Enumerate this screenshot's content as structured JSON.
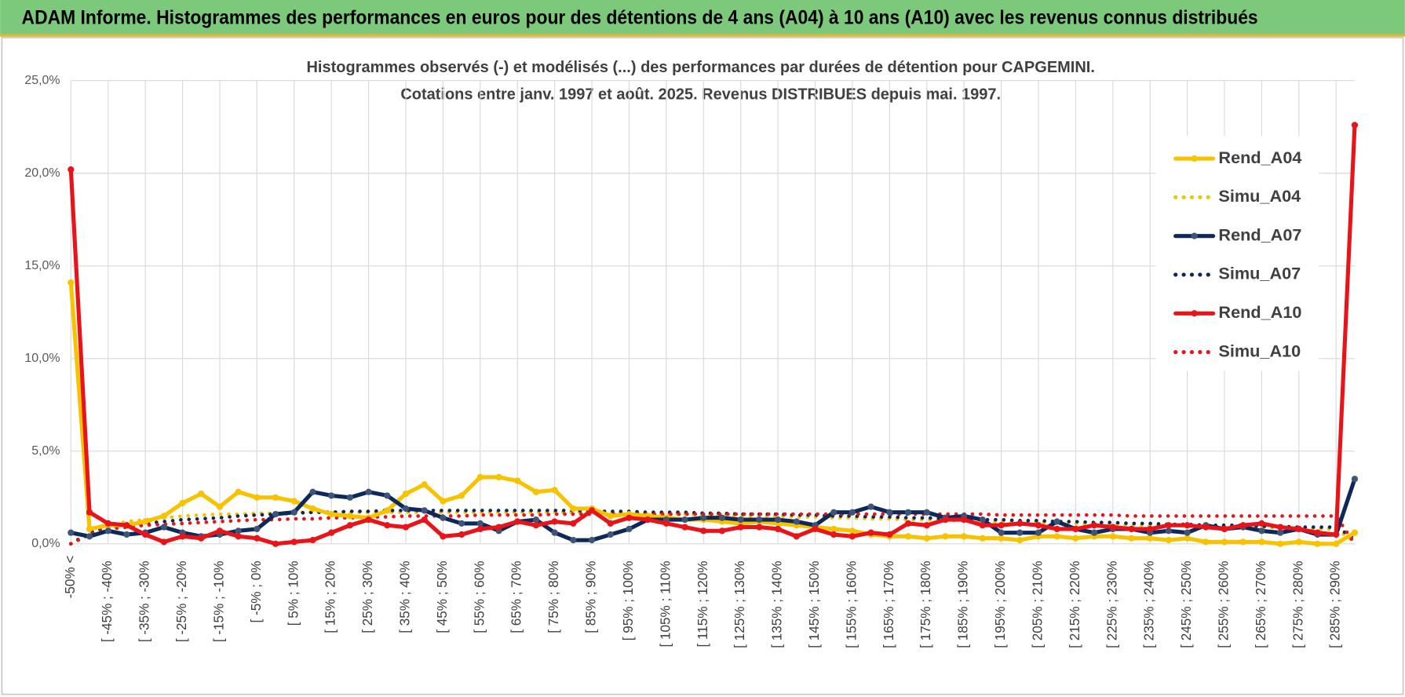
{
  "chart_data": {
    "type": "line",
    "title": "ADAM Informe. Histogrammes des performances en euros pour des détentions de 4 ans (A04) à 10 ans (A10) avec les revenus connus distribués",
    "subtitle": [
      "Histogrammes observés (-) et modélisés (...) des performances par durées de détention pour CAPGEMINI.",
      "Cotations entre janv. 1997 et août. 2025. Revenus DISTRIBUES depuis mai. 1997."
    ],
    "categories": [
      "-50% <",
      null,
      "[ -45% ; -40%",
      null,
      "[ -35% ; -30%",
      null,
      "[ -25% ; -20%",
      null,
      "[ -15% ; -10%",
      null,
      "[ -5% ; 0%",
      null,
      "[ 5% ; 10%",
      null,
      "[ 15% ; 20%",
      null,
      "[ 25% ; 30%",
      null,
      "[ 35% ; 40%",
      null,
      "[ 45% ; 50%",
      null,
      "[ 55% ; 60%",
      null,
      "[ 65% ; 70%",
      null,
      "[ 75% ; 80%",
      null,
      "[ 85% ; 90%",
      null,
      "[ 95% ; 100%",
      null,
      "[ 105% ; 110%",
      null,
      "[ 115% ; 120%",
      null,
      "[ 125% ; 130%",
      null,
      "[ 135% ; 140%",
      null,
      "[ 145% ; 150%",
      null,
      "[ 155% ; 160%",
      null,
      "[ 165% ; 170%",
      null,
      "[ 175% ; 180%",
      null,
      "[ 185% ; 190%",
      null,
      "[ 195% ; 200%",
      null,
      "[ 205% ; 210%",
      null,
      "[ 215% ; 220%",
      null,
      "[ 225% ; 230%",
      null,
      "[ 235% ; 240%",
      null,
      "[ 245% ; 250%",
      null,
      "[ 255% ; 260%",
      null,
      "[ 265% ; 270%",
      null,
      "[ 275% ; 280%",
      null,
      "[ 285% ; 290%",
      null
    ],
    "series": [
      {
        "name": "Rend_A04",
        "color": "#f7c200",
        "style": "solid",
        "values": [
          14.1,
          0.8,
          1.0,
          1.0,
          1.2,
          1.5,
          2.2,
          2.7,
          2.0,
          2.8,
          2.5,
          2.5,
          2.3,
          1.9,
          1.6,
          1.5,
          1.4,
          1.8,
          2.7,
          3.2,
          2.3,
          2.6,
          3.6,
          3.6,
          3.4,
          2.8,
          2.9,
          1.9,
          1.9,
          1.5,
          1.6,
          1.5,
          1.4,
          1.3,
          1.3,
          1.2,
          1.1,
          1.2,
          1.1,
          1.0,
          0.9,
          0.8,
          0.7,
          0.5,
          0.4,
          0.4,
          0.3,
          0.4,
          0.4,
          0.3,
          0.3,
          0.2,
          0.4,
          0.4,
          0.3,
          0.4,
          0.4,
          0.3,
          0.3,
          0.2,
          0.3,
          0.1,
          0.1,
          0.1,
          0.1,
          0.0,
          0.1,
          0.0,
          0.0,
          0.6
        ]
      },
      {
        "name": "Simu_A04",
        "color": "#f7c200",
        "style": "dotted",
        "values": [
          0.0,
          0.6,
          1.0,
          1.2,
          1.3,
          1.4,
          1.5,
          1.55,
          1.6,
          1.6,
          1.65,
          1.65,
          1.7,
          1.7,
          1.7,
          1.7,
          1.7,
          1.7,
          1.7,
          1.7,
          1.7,
          1.7,
          1.7,
          1.7,
          1.7,
          1.7,
          1.7,
          1.7,
          1.7,
          1.65,
          1.65,
          1.6,
          1.6,
          1.6,
          1.55,
          1.55,
          1.5,
          1.5,
          1.5,
          1.45,
          1.45,
          1.4,
          1.4,
          1.35,
          1.35,
          1.3,
          1.3,
          1.25,
          1.25,
          1.2,
          1.2,
          1.15,
          1.15,
          1.1,
          1.1,
          1.05,
          1.05,
          1.0,
          1.0,
          1.0,
          0.95,
          0.95,
          0.9,
          0.9,
          0.9,
          0.85,
          0.85,
          0.8,
          0.8,
          0.1
        ]
      },
      {
        "name": "Rend_A07",
        "color": "#0e2859",
        "style": "solid",
        "values": [
          0.6,
          0.4,
          0.7,
          0.5,
          0.6,
          0.9,
          0.6,
          0.4,
          0.5,
          0.7,
          0.8,
          1.6,
          1.7,
          2.8,
          2.6,
          2.5,
          2.8,
          2.6,
          1.9,
          1.8,
          1.4,
          1.1,
          1.1,
          0.7,
          1.2,
          1.3,
          0.6,
          0.2,
          0.2,
          0.5,
          0.8,
          1.3,
          1.3,
          1.3,
          1.4,
          1.4,
          1.3,
          1.3,
          1.3,
          1.2,
          1.0,
          1.7,
          1.7,
          2.0,
          1.7,
          1.7,
          1.7,
          1.4,
          1.5,
          1.3,
          0.6,
          0.6,
          0.6,
          1.2,
          0.8,
          0.6,
          0.8,
          0.8,
          0.6,
          0.7,
          0.6,
          1.0,
          0.8,
          0.9,
          0.7,
          0.6,
          0.8,
          0.5,
          0.5,
          3.5
        ]
      },
      {
        "name": "Simu_A07",
        "color": "#0e2859",
        "style": "dotted",
        "values": [
          0.0,
          0.6,
          0.9,
          1.0,
          1.1,
          1.2,
          1.3,
          1.35,
          1.4,
          1.5,
          1.55,
          1.6,
          1.65,
          1.7,
          1.7,
          1.75,
          1.75,
          1.8,
          1.8,
          1.8,
          1.8,
          1.8,
          1.8,
          1.8,
          1.8,
          1.8,
          1.8,
          1.8,
          1.75,
          1.75,
          1.75,
          1.7,
          1.7,
          1.7,
          1.65,
          1.65,
          1.6,
          1.6,
          1.6,
          1.55,
          1.55,
          1.5,
          1.5,
          1.45,
          1.45,
          1.4,
          1.4,
          1.35,
          1.35,
          1.3,
          1.3,
          1.25,
          1.25,
          1.2,
          1.2,
          1.15,
          1.15,
          1.1,
          1.1,
          1.05,
          1.05,
          1.0,
          1.0,
          1.0,
          0.95,
          0.95,
          0.9,
          0.9,
          0.9,
          0.3
        ]
      },
      {
        "name": "Rend_A10",
        "color": "#e8141a",
        "style": "solid",
        "values": [
          20.2,
          1.7,
          1.1,
          1.0,
          0.5,
          0.1,
          0.4,
          0.3,
          0.7,
          0.4,
          0.3,
          0.0,
          0.1,
          0.2,
          0.6,
          1.0,
          1.3,
          1.0,
          0.9,
          1.3,
          0.4,
          0.5,
          0.8,
          0.9,
          1.2,
          1.0,
          1.2,
          1.1,
          1.8,
          1.1,
          1.4,
          1.3,
          1.1,
          0.9,
          0.7,
          0.7,
          0.9,
          0.9,
          0.8,
          0.4,
          0.8,
          0.5,
          0.4,
          0.6,
          0.5,
          1.1,
          1.0,
          1.3,
          1.3,
          1.0,
          1.0,
          1.1,
          1.0,
          0.8,
          0.8,
          1.0,
          0.9,
          0.8,
          0.8,
          1.0,
          1.0,
          0.9,
          0.8,
          1.0,
          1.1,
          0.9,
          0.8,
          0.6,
          0.5,
          22.6
        ]
      },
      {
        "name": "Simu_A10",
        "color": "#e8141a",
        "style": "dotted",
        "values": [
          0.0,
          0.5,
          0.8,
          0.9,
          1.0,
          1.05,
          1.1,
          1.15,
          1.2,
          1.25,
          1.3,
          1.3,
          1.35,
          1.35,
          1.4,
          1.4,
          1.45,
          1.45,
          1.5,
          1.5,
          1.5,
          1.5,
          1.55,
          1.55,
          1.55,
          1.55,
          1.6,
          1.6,
          1.6,
          1.6,
          1.6,
          1.6,
          1.6,
          1.6,
          1.6,
          1.6,
          1.6,
          1.6,
          1.6,
          1.6,
          1.6,
          1.6,
          1.6,
          1.6,
          1.6,
          1.6,
          1.6,
          1.6,
          1.6,
          1.6,
          1.55,
          1.55,
          1.55,
          1.55,
          1.55,
          1.55,
          1.55,
          1.5,
          1.5,
          1.5,
          1.5,
          1.5,
          1.5,
          1.5,
          1.5,
          1.5,
          1.5,
          1.5,
          1.5,
          0.0
        ]
      }
    ],
    "ylim": [
      0,
      25
    ],
    "yticks": [
      {
        "value": 0,
        "label": "0,0%"
      },
      {
        "value": 5,
        "label": "5,0%"
      },
      {
        "value": 10,
        "label": "10,0%"
      },
      {
        "value": 15,
        "label": "15,0%"
      },
      {
        "value": 20,
        "label": "20,0%"
      },
      {
        "value": 25,
        "label": "25,0%"
      }
    ],
    "grid": true,
    "legend": "right"
  }
}
